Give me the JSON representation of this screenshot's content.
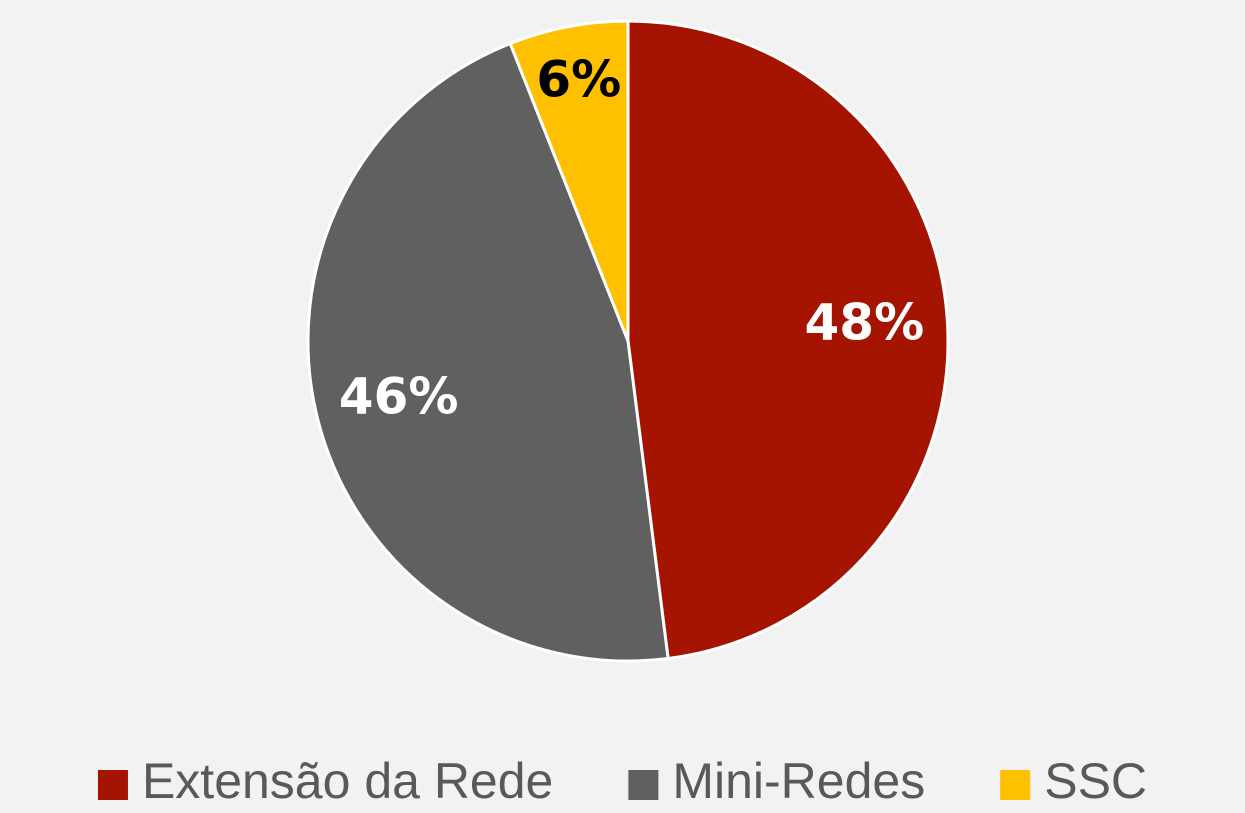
{
  "chart_data": {
    "type": "pie",
    "categories": [
      "Extensão da Rede",
      "Mini-Redes",
      "SSC"
    ],
    "values": [
      48,
      46,
      6
    ],
    "value_labels": [
      "48%",
      "46%",
      "6%"
    ],
    "colors": [
      "#a51400",
      "#606060",
      "#ffc000"
    ],
    "legend": "bottom"
  }
}
